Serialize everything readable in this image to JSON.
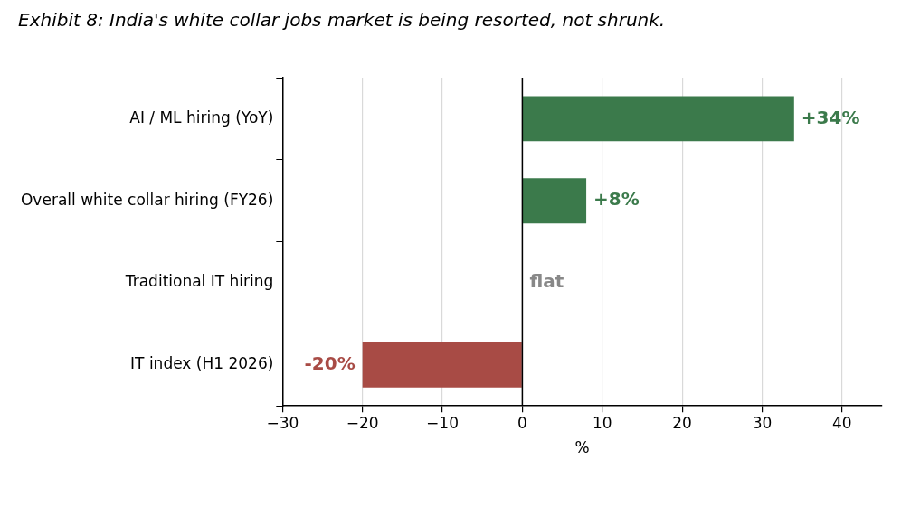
{
  "chart_data": {
    "type": "bar",
    "orientation": "horizontal",
    "title": "Exhibit 8: India's white collar jobs market is being resorted, not shrunk.",
    "categories": [
      "AI / ML hiring (YoY)",
      "Overall white collar hiring (FY26)",
      "Traditional IT hiring",
      "IT index (H1 2026)"
    ],
    "values": [
      34,
      8,
      0,
      -20
    ],
    "colors": [
      "#3b7a4b",
      "#3b7a4b",
      "#888888",
      "#a84b45"
    ],
    "value_labels": [
      "+34%",
      "+8%",
      "flat",
      "-20%"
    ],
    "xlabel": "%",
    "xlim": [
      -30,
      45
    ],
    "xticks": [
      -30,
      -20,
      -10,
      0,
      10,
      20,
      30,
      40
    ],
    "ref_lines": [
      {
        "axis": "x",
        "value": 0,
        "color": "#000000"
      }
    ],
    "grid": "x",
    "legend": false
  }
}
